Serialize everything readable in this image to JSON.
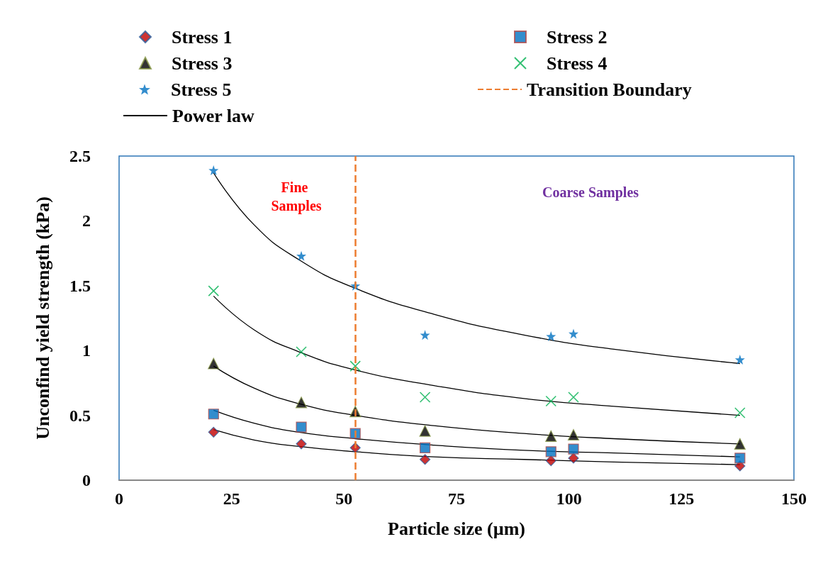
{
  "chart_data": {
    "type": "scatter",
    "xlabel": "Particle size (µm)",
    "ylabel": "Unconfind yield strength (kPa)",
    "xlim": [
      0,
      150
    ],
    "xticks": [
      0,
      25,
      50,
      75,
      100,
      125,
      150
    ],
    "ylim": [
      0,
      2.5
    ],
    "yticks": [
      0,
      0.5,
      1,
      1.5,
      2,
      2.5
    ],
    "grid": false,
    "legend": "top",
    "x": [
      21,
      40.5,
      52.5,
      68,
      96,
      101,
      138
    ],
    "series": [
      {
        "name": "Stress 1",
        "marker": "diamond",
        "color": "#c00000",
        "values": [
          0.37,
          0.28,
          0.25,
          0.16,
          0.15,
          0.17,
          0.11
        ]
      },
      {
        "name": "Stress 2",
        "marker": "square",
        "color": "#0070c0",
        "values": [
          0.51,
          0.41,
          0.36,
          0.25,
          0.22,
          0.24,
          0.17
        ]
      },
      {
        "name": "Stress 3",
        "marker": "triangle",
        "color": "#000000",
        "values": [
          0.9,
          0.6,
          0.53,
          0.38,
          0.34,
          0.35,
          0.28
        ]
      },
      {
        "name": "Stress 4",
        "marker": "cross",
        "color": "#00b050",
        "values": [
          1.46,
          0.99,
          0.88,
          0.64,
          0.61,
          0.64,
          0.52
        ]
      },
      {
        "name": "Stress 5",
        "marker": "star",
        "color": "#0070c0",
        "values": [
          2.39,
          1.73,
          1.5,
          1.12,
          1.11,
          1.13,
          0.93
        ]
      },
      {
        "name": "Power law",
        "type": "line",
        "marker": "none",
        "color": "#000000",
        "x": [
          21,
          30,
          40,
          52.5,
          70,
          90,
          110,
          138
        ],
        "values": [
          0.39,
          0.31,
          0.26,
          0.22,
          0.18,
          0.16,
          0.14,
          0.12
        ]
      },
      {
        "type": "line",
        "marker": "none",
        "color": "#000000",
        "x": [
          21,
          30,
          40,
          52.5,
          70,
          90,
          110,
          138
        ],
        "values": [
          0.54,
          0.44,
          0.37,
          0.32,
          0.27,
          0.23,
          0.21,
          0.18
        ]
      },
      {
        "type": "line",
        "marker": "none",
        "color": "#000000",
        "x": [
          21,
          30,
          40,
          52.5,
          70,
          90,
          110,
          138
        ],
        "values": [
          0.88,
          0.71,
          0.59,
          0.5,
          0.42,
          0.36,
          0.32,
          0.28
        ]
      },
      {
        "type": "line",
        "marker": "none",
        "color": "#000000",
        "x": [
          21,
          30,
          40,
          52.5,
          70,
          90,
          110,
          138
        ],
        "values": [
          1.42,
          1.16,
          0.99,
          0.85,
          0.73,
          0.63,
          0.57,
          0.5
        ]
      },
      {
        "type": "line",
        "marker": "none",
        "color": "#000000",
        "x": [
          21,
          30,
          40,
          52.5,
          70,
          90,
          110,
          138
        ],
        "values": [
          2.37,
          1.97,
          1.7,
          1.48,
          1.28,
          1.12,
          1.01,
          0.9
        ]
      }
    ],
    "ref_lines": [
      {
        "axis": "x",
        "value": 52.5,
        "label": "Transition Boundary",
        "color": "#ed7d31",
        "line_style": "dashed"
      }
    ],
    "annotations": [
      "Fine Samples",
      "Coarse Samples"
    ]
  }
}
